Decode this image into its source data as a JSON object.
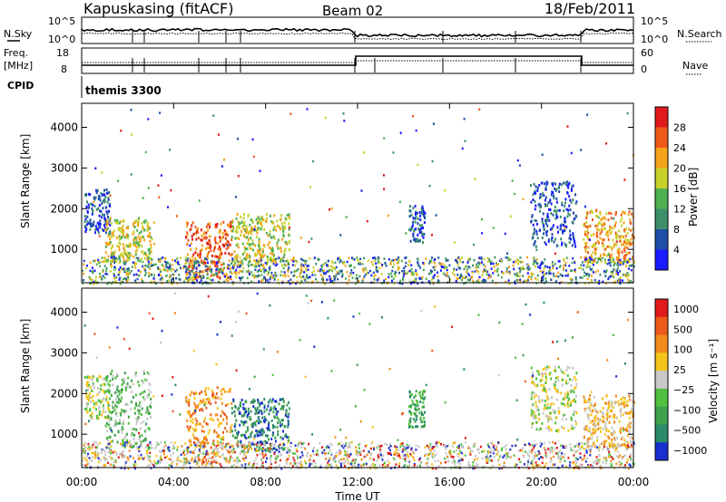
{
  "header": {
    "station": "Kapuskasing (fitACF)",
    "beam": "Beam 02",
    "date": "18/Feb/2011"
  },
  "sky_panel": {
    "left_label": "N.Sky",
    "left_ticks": [
      "10^5",
      "10^0"
    ],
    "right_label": "N.Search",
    "right_ticks": [
      "10^5",
      "10^0"
    ]
  },
  "freq_panel": {
    "left_label_line1": "Freq.",
    "left_label_line2": "[MHz]",
    "left_ticks": [
      "18",
      "8"
    ],
    "right_label": "Nave",
    "right_ticks": [
      "60",
      "0"
    ]
  },
  "cpid": {
    "label": "CPID",
    "value": "themis 3300"
  },
  "chart_data": [
    {
      "type": "heatmap",
      "title": "",
      "xlabel": "",
      "ylabel": "Slant Range [km]",
      "x_range": [
        "00:00",
        "24:00"
      ],
      "y_range_km": [
        180,
        4590
      ],
      "y_ticks": [
        "1000",
        "2000",
        "3000",
        "4000"
      ],
      "x_ticks": [
        "00:00",
        "04:00",
        "08:00",
        "12:00",
        "16:00",
        "20:00",
        "00:00"
      ],
      "colorbar": {
        "label": "Power [dB]",
        "ticks": [
          "4",
          "8",
          "12",
          "16",
          "20",
          "24",
          "28"
        ],
        "colors": [
          "#1a1aff",
          "#1f4fa8",
          "#3d8f6a",
          "#4fb04f",
          "#c8d02a",
          "#f4a21a",
          "#ef5a1a",
          "#e01a1a"
        ]
      },
      "echo_regions": [
        {
          "t_start": 0.1,
          "t_end": 1.2,
          "r_min": 1400,
          "r_max": 2500,
          "level": 1
        },
        {
          "t_start": 1.0,
          "t_end": 3.0,
          "r_min": 700,
          "r_max": 1800,
          "level": 4
        },
        {
          "t_start": 4.5,
          "t_end": 6.5,
          "r_min": 300,
          "r_max": 1700,
          "level": 6
        },
        {
          "t_start": 6.5,
          "t_end": 9.0,
          "r_min": 600,
          "r_max": 1900,
          "level": 4
        },
        {
          "t_start": 14.2,
          "t_end": 14.9,
          "r_min": 1200,
          "r_max": 2100,
          "level": 1
        },
        {
          "t_start": 19.5,
          "t_end": 21.5,
          "r_min": 1100,
          "r_max": 2700,
          "level": 1
        },
        {
          "t_start": 21.8,
          "t_end": 24.0,
          "r_min": 700,
          "r_max": 2000,
          "level": 5
        }
      ]
    },
    {
      "type": "heatmap",
      "title": "",
      "xlabel": "Time UT",
      "ylabel": "Slant Range [km]",
      "x_range": [
        "00:00",
        "24:00"
      ],
      "y_range_km": [
        180,
        4590
      ],
      "y_ticks": [
        "1000",
        "2000",
        "3000",
        "4000"
      ],
      "x_ticks": [
        "00:00",
        "04:00",
        "08:00",
        "12:00",
        "16:00",
        "20:00",
        "00:00"
      ],
      "colorbar": {
        "label": "Velocity [m s⁻¹]",
        "ticks": [
          "1000",
          "500",
          "100",
          "25",
          "−25",
          "−100",
          "−500",
          "−1000"
        ],
        "colors": [
          "#1a2fd0",
          "#2a8a6a",
          "#3da04a",
          "#50c040",
          "#c8c8c8",
          "#f4c41a",
          "#f28c1a",
          "#ec5a1a",
          "#e01a1a"
        ]
      },
      "echo_regions": [
        {
          "t_start": 0.1,
          "t_end": 1.2,
          "r_min": 1400,
          "r_max": 2500,
          "level": 4
        },
        {
          "t_start": 1.0,
          "t_end": 3.0,
          "r_min": 700,
          "r_max": 2600,
          "level": 3
        },
        {
          "t_start": 4.5,
          "t_end": 6.5,
          "r_min": 300,
          "r_max": 2200,
          "level": 6
        },
        {
          "t_start": 6.5,
          "t_end": 9.0,
          "r_min": 600,
          "r_max": 1900,
          "level": 1
        },
        {
          "t_start": 14.2,
          "t_end": 14.9,
          "r_min": 1200,
          "r_max": 2100,
          "level": 2
        },
        {
          "t_start": 19.5,
          "t_end": 21.5,
          "r_min": 1100,
          "r_max": 2700,
          "level": 4
        },
        {
          "t_start": 21.8,
          "t_end": 24.0,
          "r_min": 700,
          "r_max": 2000,
          "level": 5
        }
      ]
    }
  ]
}
